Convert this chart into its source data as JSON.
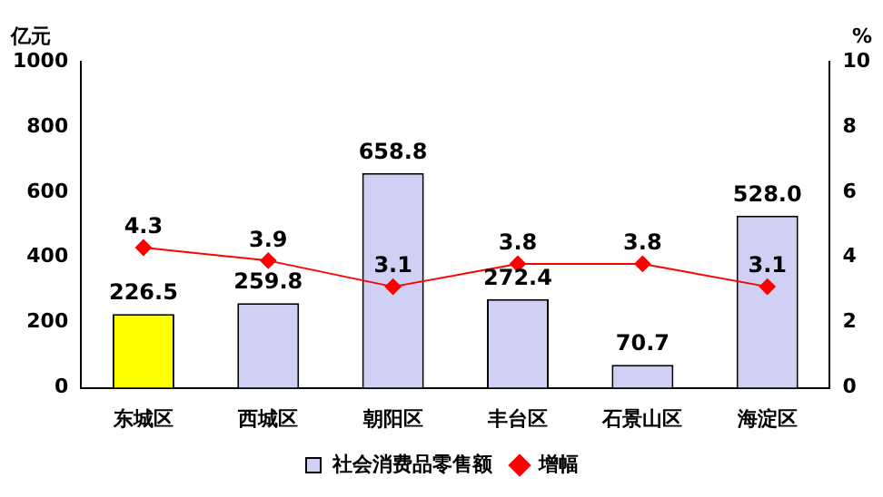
{
  "chart_data": {
    "type": "bar",
    "categories": [
      "东城区",
      "西城区",
      "朝阳区",
      "丰台区",
      "石景山区",
      "海淀区"
    ],
    "ylabel": "亿元",
    "y2label": "%",
    "series": [
      {
        "name": "社会消费品零售额",
        "color": "#d0d0f4",
        "colors": [
          "#ffff00",
          "#d0d0f4",
          "#d0d0f4",
          "#d0d0f4",
          "#d0d0f4",
          "#d0d0f4"
        ],
        "values": [
          226.5,
          259.8,
          658.8,
          272.4,
          70.7,
          528.0
        ],
        "value_labels": [
          "226.5",
          "259.8",
          "658.8",
          "272.4",
          "70.7",
          "528.0"
        ]
      },
      {
        "name": "增幅",
        "type": "line",
        "axis": "y2",
        "color": "#ff0000",
        "values": [
          4.3,
          3.9,
          3.1,
          3.8,
          3.8,
          3.1
        ],
        "value_labels": [
          "4.3",
          "3.9",
          "3.1",
          "3.8",
          "3.8",
          "3.1"
        ]
      }
    ],
    "ylim": [
      0,
      1000
    ],
    "yticks": [
      0,
      200,
      400,
      600,
      800,
      1000
    ],
    "y2lim": [
      0,
      10
    ],
    "y2ticks": [
      0,
      2,
      4,
      6,
      8,
      10
    ],
    "grid": false,
    "legend": "bottom",
    "marker": "diamond",
    "line_style": "solid"
  }
}
